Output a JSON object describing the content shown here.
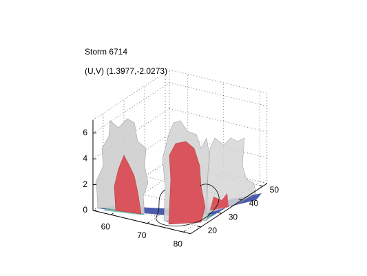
{
  "chart_data": {
    "type": "isosurface3d",
    "title": "Storm 6714",
    "subtitle": "(U,V) (1.3977,-2.0273)",
    "xlim": [
      55,
      82
    ],
    "xticks": [
      60,
      70,
      80
    ],
    "ylim": [
      15,
      52
    ],
    "yticks": [
      20,
      30,
      40,
      50
    ],
    "zlim": [
      0,
      7
    ],
    "zticks": [
      0,
      2,
      4,
      6
    ],
    "grid": true
  }
}
